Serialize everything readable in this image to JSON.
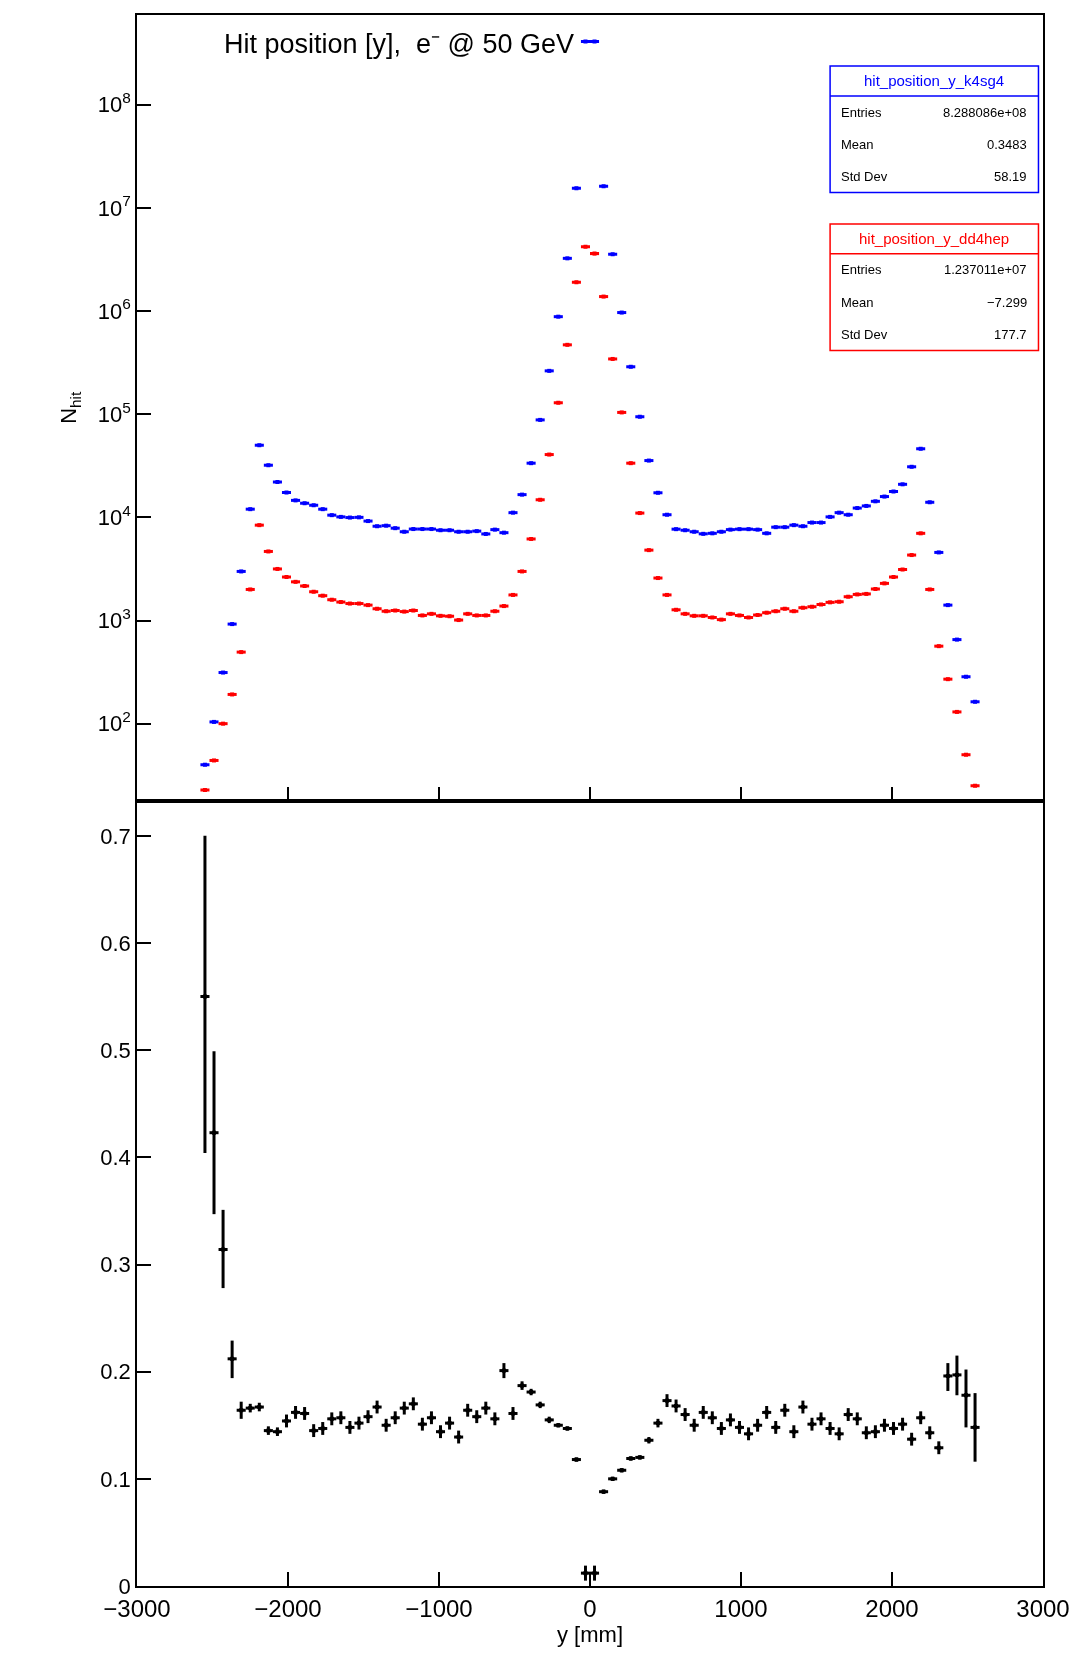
{
  "chart_data": [
    {
      "type": "scatter",
      "title": "Hit position [y],  e⁻ @ 50 GeV",
      "ylabel": "N$_{hit}$",
      "log": true,
      "marker": "square",
      "legend": "top right",
      "tick_labels": "y",
      "xlim": [
        -3000,
        3000
      ],
      "xticks": [
        -3000,
        -2000,
        -1000,
        0,
        1000,
        2000,
        3000
      ],
      "ylim": [
        18,
        740000000
      ],
      "yticks": [
        {
          "value": 100,
          "label": "10$^{2}$"
        },
        {
          "value": 1000,
          "label": "10$^{3}$"
        },
        {
          "value": 10000,
          "label": "10$^{4}$"
        },
        {
          "value": 100000,
          "label": "10$^{5}$"
        },
        {
          "value": 1000000,
          "label": "10$^{6}$"
        },
        {
          "value": 10000000,
          "label": "10$^{7}$"
        },
        {
          "value": 100000000,
          "label": "10$^{8}$"
        }
      ],
      "annotations": [
        "Entries",
        "8.288086e+08",
        "Mean",
        "0.3483",
        "Std Dev",
        "58.19",
        "Entries",
        "1.237011e+07",
        "Mean",
        "−7.299",
        "Std Dev",
        "177.7"
      ],
      "x": [
        -2550,
        -2490,
        -2430,
        -2370,
        -2310,
        -2250,
        -2190,
        -2130,
        -2070,
        -2010,
        -1950,
        -1890,
        -1830,
        -1770,
        -1710,
        -1650,
        -1590,
        -1530,
        -1470,
        -1410,
        -1350,
        -1290,
        -1230,
        -1170,
        -1110,
        -1050,
        -990,
        -930,
        -870,
        -810,
        -750,
        -690,
        -630,
        -570,
        -510,
        -450,
        -390,
        -330,
        -270,
        -210,
        -150,
        -90,
        -30,
        30,
        90,
        150,
        210,
        270,
        330,
        390,
        450,
        510,
        570,
        630,
        690,
        750,
        810,
        870,
        930,
        990,
        1050,
        1110,
        1170,
        1230,
        1290,
        1350,
        1410,
        1470,
        1530,
        1590,
        1650,
        1710,
        1770,
        1830,
        1890,
        1950,
        2010,
        2070,
        2130,
        2190,
        2250,
        2310,
        2370,
        2430,
        2490,
        2550
      ],
      "series": [
        {
          "name": "hit_position_y_k4sg4",
          "color": "#0000ff",
          "values": [
            40,
            104,
            313,
            923,
            2990,
            12000,
            50000,
            32000,
            22000,
            17400,
            14600,
            13700,
            13100,
            12000,
            10500,
            10100,
            9950,
            10000,
            9200,
            8200,
            8300,
            7850,
            7250,
            7700,
            7700,
            7700,
            7500,
            7500,
            7250,
            7250,
            7350,
            6900,
            7600,
            7100,
            11100,
            16600,
            33500,
            88000,
            263000,
            881000,
            3240000,
            15500000,
            410000000,
            410000000,
            16200000,
            3550000,
            966000,
            288000,
            94400,
            35500,
            17300,
            10600,
            7680,
            7500,
            7250,
            6920,
            7000,
            7250,
            7600,
            7680,
            7680,
            7600,
            7000,
            8030,
            8030,
            8400,
            8200,
            8900,
            8900,
            10100,
            11100,
            10600,
            12300,
            12900,
            14300,
            15900,
            17800,
            20900,
            30900,
            46200,
            14000,
            4570,
            1410,
            653,
            285,
            163
          ],
          "xerrors": [
            30,
            30,
            30,
            30,
            30,
            30,
            30,
            30,
            30,
            30,
            30,
            30,
            30,
            30,
            30,
            30,
            30,
            30,
            30,
            30,
            30,
            30,
            30,
            30,
            30,
            30,
            30,
            30,
            30,
            30,
            30,
            30,
            30,
            30,
            30,
            30,
            30,
            30,
            30,
            30,
            30,
            30,
            30,
            30,
            30,
            30,
            30,
            30,
            30,
            30,
            30,
            30,
            30,
            30,
            30,
            30,
            30,
            30,
            30,
            30,
            30,
            30,
            30,
            30,
            30,
            30,
            30,
            30,
            30,
            30,
            30,
            30,
            30,
            30,
            30,
            30,
            30,
            30,
            30,
            30,
            30,
            30,
            30,
            30,
            30,
            30
          ]
        },
        {
          "name": "hit_position_y_dd4hep",
          "color": "#ff0000",
          "values": [
            22.7,
            44,
            100,
            192,
            494,
            2000,
            8400,
            4670,
            3160,
            2640,
            2370,
            2160,
            1900,
            1740,
            1590,
            1510,
            1460,
            1460,
            1410,
            1300,
            1230,
            1250,
            1220,
            1250,
            1120,
            1160,
            1110,
            1100,
            1010,
            1160,
            1120,
            1120,
            1230,
            1380,
            1770,
            2990,
            6170,
            14800,
            40600,
            129000,
            470000,
            1900000,
            4200000,
            3600000,
            1380000,
            343000,
            104000,
            33500,
            11000,
            4810,
            2580,
            1770,
            1270,
            1160,
            1110,
            1110,
            1070,
            1020,
            1160,
            1120,
            1070,
            1130,
            1190,
            1230,
            1300,
            1230,
            1330,
            1360,
            1430,
            1500,
            1520,
            1700,
            1790,
            1810,
            2020,
            2290,
            2640,
            3120,
            4310,
            7000,
            2000,
            564,
            270,
            130,
            50,
            25
          ],
          "xerrors": [
            30,
            30,
            30,
            30,
            30,
            30,
            30,
            30,
            30,
            30,
            30,
            30,
            30,
            30,
            30,
            30,
            30,
            30,
            30,
            30,
            30,
            30,
            30,
            30,
            30,
            30,
            30,
            30,
            30,
            30,
            30,
            30,
            30,
            30,
            30,
            30,
            30,
            30,
            30,
            30,
            30,
            30,
            30,
            30,
            30,
            30,
            30,
            30,
            30,
            30,
            30,
            30,
            30,
            30,
            30,
            30,
            30,
            30,
            30,
            30,
            30,
            30,
            30,
            30,
            30,
            30,
            30,
            30,
            30,
            30,
            30,
            30,
            30,
            30,
            30,
            30,
            30,
            30,
            30,
            30,
            30,
            30,
            30,
            30,
            30,
            30
          ]
        }
      ]
    },
    {
      "type": "scatter",
      "xlabel": "y [mm]",
      "marker": "square",
      "xlim": [
        -3000,
        3000
      ],
      "xticks": [
        {
          "value": -3000,
          "label": "−3000"
        },
        {
          "value": -2000,
          "label": "−2000"
        },
        {
          "value": -1000,
          "label": "−1000"
        },
        0,
        1000,
        2000,
        3000
      ],
      "ylim": [
        0,
        0.733
      ],
      "yticks": [
        0,
        0.1,
        0.2,
        0.3,
        0.4,
        0.5,
        0.6,
        0.7
      ],
      "x": [
        -2550,
        -2490,
        -2430,
        -2370,
        -2310,
        -2250,
        -2190,
        -2130,
        -2070,
        -2010,
        -1950,
        -1890,
        -1830,
        -1770,
        -1710,
        -1650,
        -1590,
        -1530,
        -1470,
        -1410,
        -1350,
        -1290,
        -1230,
        -1170,
        -1110,
        -1050,
        -990,
        -930,
        -870,
        -810,
        -750,
        -690,
        -630,
        -570,
        -510,
        -450,
        -390,
        -330,
        -270,
        -210,
        -150,
        -90,
        -30,
        30,
        90,
        150,
        210,
        270,
        330,
        390,
        450,
        510,
        570,
        630,
        690,
        750,
        810,
        870,
        930,
        990,
        1050,
        1110,
        1170,
        1230,
        1290,
        1350,
        1410,
        1470,
        1530,
        1590,
        1650,
        1710,
        1770,
        1830,
        1890,
        1950,
        2010,
        2070,
        2130,
        2190,
        2250,
        2310,
        2370,
        2430,
        2490,
        2550
      ],
      "series": [
        {
          "color": "#000000",
          "values": [
            0.55,
            0.423,
            0.314,
            0.212,
            0.164,
            0.166,
            0.167,
            0.145,
            0.144,
            0.154,
            0.162,
            0.161,
            0.145,
            0.147,
            0.156,
            0.157,
            0.148,
            0.152,
            0.158,
            0.167,
            0.15,
            0.157,
            0.166,
            0.17,
            0.151,
            0.157,
            0.144,
            0.152,
            0.139,
            0.164,
            0.158,
            0.166,
            0.156,
            0.201,
            0.161,
            0.187,
            0.181,
            0.169,
            0.155,
            0.15,
            0.147,
            0.118,
            0.012,
            0.012,
            0.088,
            0.1,
            0.108,
            0.119,
            0.12,
            0.136,
            0.152,
            0.173,
            0.168,
            0.16,
            0.15,
            0.162,
            0.157,
            0.147,
            0.155,
            0.148,
            0.142,
            0.15,
            0.162,
            0.148,
            0.164,
            0.144,
            0.167,
            0.151,
            0.156,
            0.147,
            0.142,
            0.16,
            0.156,
            0.143,
            0.144,
            0.15,
            0.147,
            0.151,
            0.137,
            0.157,
            0.143,
            0.129,
            0.196,
            0.197,
            0.178,
            0.148
          ],
          "errors": [
            [
              0.404,
              0.7
            ],
            [
              0.347,
              0.499
            ],
            [
              0.278,
              0.351
            ],
            [
              0.194,
              0.229
            ],
            0.008,
            0.004,
            0.004,
            0.004,
            0.004,
            0.006,
            0.006,
            0.006,
            0.006,
            0.006,
            0.006,
            0.006,
            0.006,
            0.006,
            0.006,
            0.006,
            0.006,
            0.006,
            0.006,
            0.006,
            0.006,
            0.006,
            0.006,
            0.006,
            0.006,
            0.006,
            0.006,
            0.006,
            0.006,
            0.007,
            0.006,
            0.004,
            0.003,
            0.003,
            0.003,
            0.002,
            0.002,
            0.002,
            0.007,
            0.007,
            0.002,
            0.002,
            0.002,
            0.002,
            0.002,
            0.003,
            0.004,
            0.006,
            0.006,
            0.006,
            0.006,
            0.006,
            0.006,
            0.006,
            0.006,
            0.006,
            0.006,
            0.006,
            0.006,
            0.006,
            0.006,
            0.006,
            0.006,
            0.006,
            0.006,
            0.006,
            0.006,
            0.006,
            0.006,
            0.006,
            0.006,
            0.006,
            0.006,
            0.006,
            0.006,
            0.006,
            0.006,
            0.006,
            [
              0.182,
              0.208
            ],
            [
              0.178,
              0.215
            ],
            [
              0.148,
              0.202
            ],
            [
              0.116,
              0.18
            ]
          ],
          "xerrors": [
            30,
            30,
            30,
            30,
            30,
            30,
            30,
            30,
            30,
            30,
            30,
            30,
            30,
            30,
            30,
            30,
            30,
            30,
            30,
            30,
            30,
            30,
            30,
            30,
            30,
            30,
            30,
            30,
            30,
            30,
            30,
            30,
            30,
            30,
            30,
            30,
            30,
            30,
            30,
            30,
            30,
            30,
            30,
            30,
            30,
            30,
            30,
            30,
            30,
            30,
            30,
            30,
            30,
            30,
            30,
            30,
            30,
            30,
            30,
            30,
            30,
            30,
            30,
            30,
            30,
            30,
            30,
            30,
            30,
            30,
            30,
            30,
            30,
            30,
            30,
            30,
            30,
            30,
            30,
            30,
            30,
            30,
            30,
            30,
            30,
            30
          ]
        }
      ]
    }
  ]
}
